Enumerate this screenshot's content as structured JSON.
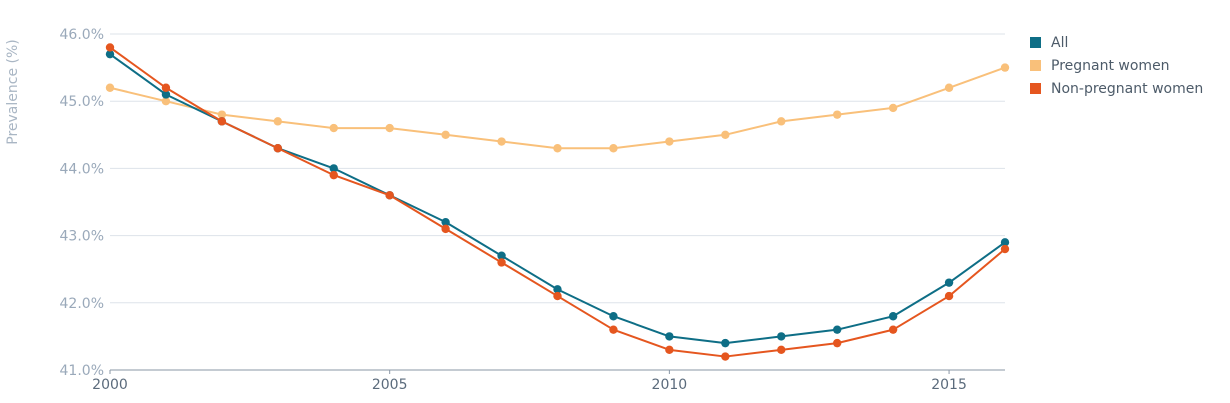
{
  "chart_data": {
    "type": "line",
    "title": "",
    "xlabel": "",
    "ylabel": "Prevalence (%)",
    "x": [
      2000,
      2001,
      2002,
      2003,
      2004,
      2005,
      2006,
      2007,
      2008,
      2009,
      2010,
      2011,
      2012,
      2013,
      2014,
      2015,
      2016
    ],
    "xlim": [
      2000,
      2016
    ],
    "ylim": [
      41.0,
      46.0
    ],
    "x_ticks": [
      2000,
      2005,
      2010,
      2015
    ],
    "x_tick_labels": [
      "2000",
      "2005",
      "2010",
      "2015"
    ],
    "y_ticks": [
      41.0,
      42.0,
      43.0,
      44.0,
      45.0,
      46.0
    ],
    "y_tick_labels": [
      "41.0%",
      "42.0%",
      "43.0%",
      "44.0%",
      "45.0%",
      "46.0%"
    ],
    "grid": true,
    "legend_position": "top-right",
    "series": [
      {
        "name": "All",
        "color": "#0e6e86",
        "values": [
          45.7,
          45.1,
          44.7,
          44.3,
          44.0,
          43.6,
          43.2,
          42.7,
          42.2,
          41.8,
          41.5,
          41.4,
          41.5,
          41.6,
          41.8,
          42.3,
          42.9
        ]
      },
      {
        "name": "Pregnant women",
        "color": "#f9c07a",
        "values": [
          45.2,
          45.0,
          44.8,
          44.7,
          44.6,
          44.6,
          44.5,
          44.4,
          44.3,
          44.3,
          44.4,
          44.5,
          44.7,
          44.8,
          44.9,
          45.2,
          45.5
        ]
      },
      {
        "name": "Non-pregnant women",
        "color": "#e5561f",
        "values": [
          45.8,
          45.2,
          44.7,
          44.3,
          43.9,
          43.6,
          43.1,
          42.6,
          42.1,
          41.6,
          41.3,
          41.2,
          41.3,
          41.4,
          41.6,
          42.1,
          42.8
        ]
      }
    ]
  }
}
